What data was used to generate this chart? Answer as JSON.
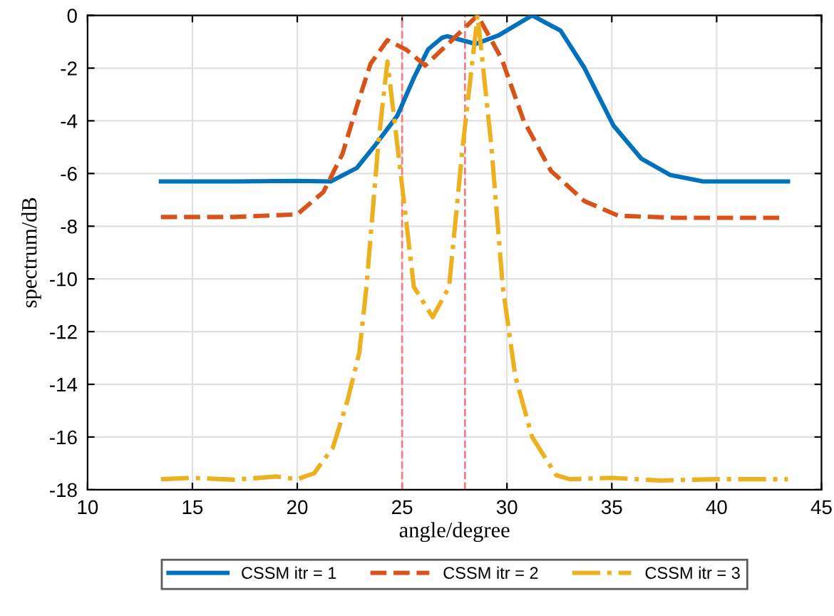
{
  "chart_data": {
    "type": "line",
    "xlabel": "angle/degree",
    "ylabel": "spectrum/dB",
    "xlim": [
      10,
      45
    ],
    "xticks": [
      10,
      15,
      20,
      25,
      30,
      35,
      40,
      45
    ],
    "ylim": [
      -18,
      0
    ],
    "yticks": [
      -18,
      -16,
      -14,
      -12,
      -10,
      -8,
      -6,
      -4,
      -2,
      0
    ],
    "grid": true,
    "legend": "bottom",
    "marker": "none",
    "ref_lines": [
      {
        "axis": "x",
        "value": 25,
        "label": null,
        "color": "#f08080",
        "line_style": "dashed"
      },
      {
        "axis": "x",
        "value": 28,
        "label": null,
        "color": "#f08080",
        "line_style": "dashed"
      }
    ],
    "series": [
      {
        "name": "CSSM itr = 1",
        "color": "#0072bd",
        "line_style": "solid",
        "x": [
          13.5,
          17,
          20,
          21.6,
          22.84,
          23.75,
          24.77,
          25.56,
          26.24,
          26.9,
          27.14,
          28.5,
          29.6,
          31.2,
          32.56,
          33.7,
          35.07,
          36.4,
          37.8,
          39.35,
          43.4
        ],
        "values": [
          -6.3,
          -6.3,
          -6.28,
          -6.3,
          -5.79,
          -4.89,
          -3.81,
          -2.37,
          -1.29,
          -0.85,
          -0.79,
          -1.08,
          -0.76,
          0,
          -0.58,
          -2.0,
          -4.17,
          -5.43,
          -6.06,
          -6.3,
          -6.3
        ]
      },
      {
        "name": "CSSM itr = 2",
        "color": "#d95319",
        "line_style": "dashed",
        "x": [
          13.5,
          17,
          20,
          21.25,
          22.16,
          22.84,
          23.5,
          24.3,
          25.2,
          26.1,
          27.3,
          28.6,
          29.75,
          30.8,
          32.1,
          33.7,
          35.3,
          38,
          43.2
        ],
        "values": [
          -7.65,
          -7.65,
          -7.55,
          -6.7,
          -5.25,
          -3.45,
          -1.83,
          -0.94,
          -1.3,
          -1.9,
          -1.0,
          0,
          -1.65,
          -4.0,
          -5.9,
          -7.05,
          -7.6,
          -7.68,
          -7.68
        ]
      },
      {
        "name": "CSSM itr = 3",
        "color": "#edb120",
        "line_style": "dashdot",
        "x": [
          13.5,
          15,
          17,
          19,
          20,
          20.8,
          21.7,
          22.4,
          22.96,
          23.3,
          23.86,
          24.3,
          24.77,
          25.56,
          26.46,
          27.24,
          27.9,
          28.6,
          29.25,
          29.8,
          30.4,
          31.2,
          32.35,
          33.0,
          35,
          37.3,
          40,
          43.4
        ],
        "values": [
          -17.6,
          -17.55,
          -17.62,
          -17.5,
          -17.6,
          -17.38,
          -16.4,
          -14.6,
          -12.8,
          -10.3,
          -4.9,
          -1.75,
          -4.9,
          -10.3,
          -11.45,
          -10.3,
          -4.9,
          0,
          -4.9,
          -10.3,
          -13.7,
          -16.0,
          -17.45,
          -17.6,
          -17.55,
          -17.65,
          -17.6,
          -17.6
        ]
      }
    ]
  }
}
